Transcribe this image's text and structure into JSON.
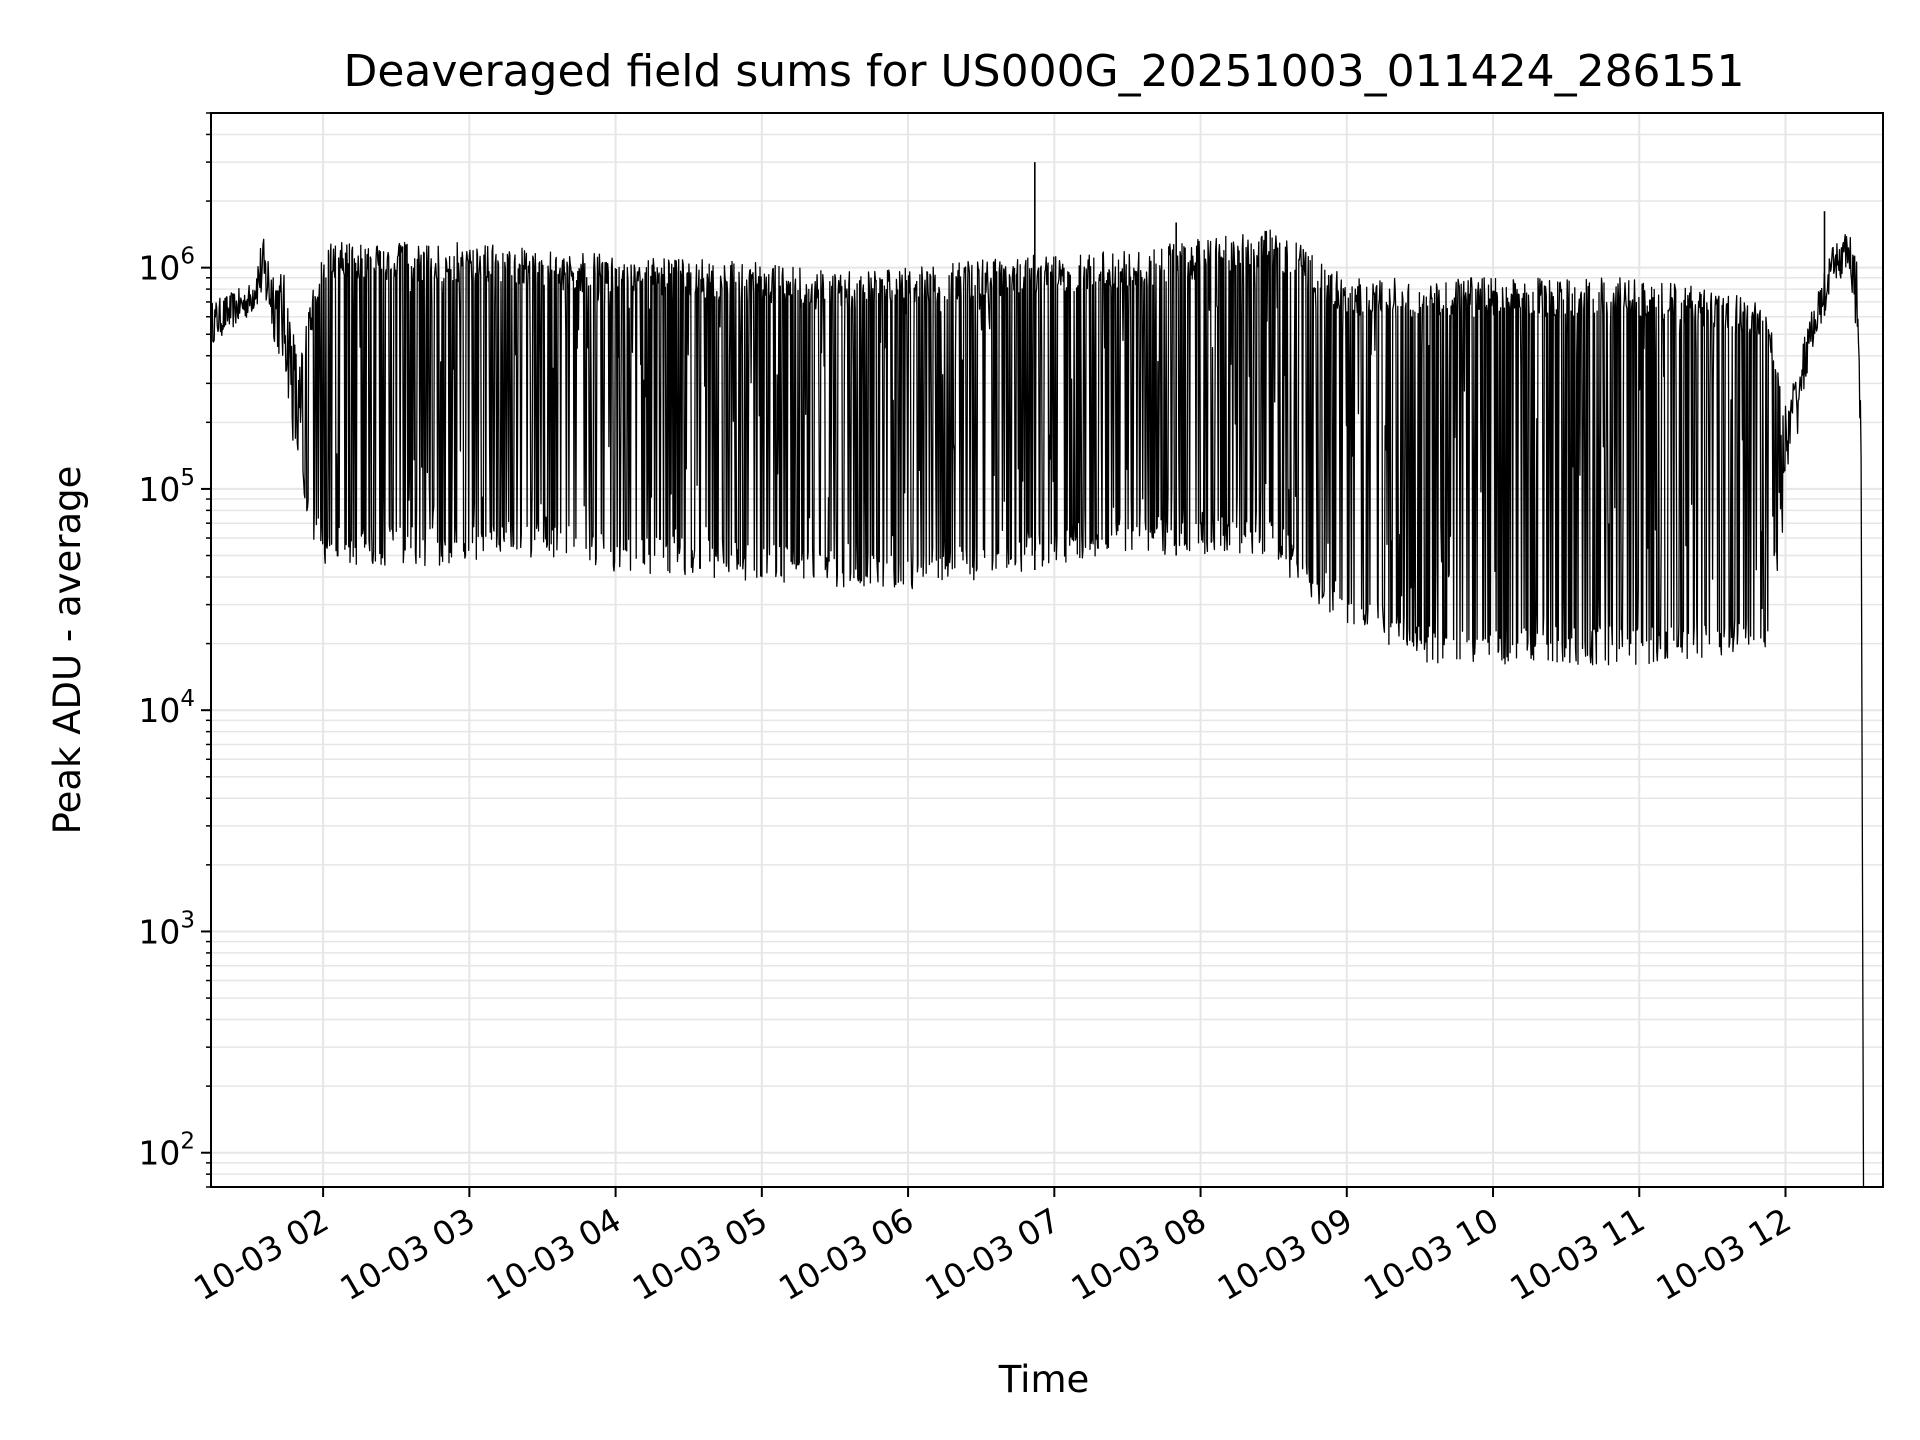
{
  "chart_data": {
    "type": "line",
    "title": "Deaveraged field sums for US000G_20251003_011424_286151",
    "xlabel": "Time",
    "ylabel": "Peak ADU - average",
    "y_scale": "log",
    "grid": true,
    "line_color": "#000000",
    "grid_color": "#e6e6e6",
    "xlim": [
      "2025-10-03 01:14",
      "2025-10-03 12:40"
    ],
    "ylim": [
      70,
      5000000
    ],
    "x_ticks": [
      {
        "t": "2025-10-03 02:00",
        "label": "10-03 02"
      },
      {
        "t": "2025-10-03 03:00",
        "label": "10-03 03"
      },
      {
        "t": "2025-10-03 04:00",
        "label": "10-03 04"
      },
      {
        "t": "2025-10-03 05:00",
        "label": "10-03 05"
      },
      {
        "t": "2025-10-03 06:00",
        "label": "10-03 06"
      },
      {
        "t": "2025-10-03 07:00",
        "label": "10-03 07"
      },
      {
        "t": "2025-10-03 08:00",
        "label": "10-03 08"
      },
      {
        "t": "2025-10-03 09:00",
        "label": "10-03 09"
      },
      {
        "t": "2025-10-03 10:00",
        "label": "10-03 10"
      },
      {
        "t": "2025-10-03 11:00",
        "label": "10-03 11"
      },
      {
        "t": "2025-10-03 12:00",
        "label": "10-03 12"
      }
    ],
    "y_ticks": [
      {
        "value": 100,
        "base": "10",
        "exp": "2"
      },
      {
        "value": 1000,
        "base": "10",
        "exp": "3"
      },
      {
        "value": 10000,
        "base": "10",
        "exp": "4"
      },
      {
        "value": 100000,
        "base": "10",
        "exp": "5"
      },
      {
        "value": 1000000,
        "base": "10",
        "exp": "6"
      }
    ],
    "series": [
      {
        "envelope": [
          {
            "t": "2025-10-03 01:14",
            "upper": 700000,
            "lower": 450000
          },
          {
            "t": "2025-10-03 01:30",
            "upper": 850000,
            "lower": 600000
          },
          {
            "t": "2025-10-03 01:35",
            "upper": 1400000,
            "lower": 700000
          },
          {
            "t": "2025-10-03 01:45",
            "upper": 900000,
            "lower": 300000
          },
          {
            "t": "2025-10-03 01:50",
            "upper": 400000,
            "lower": 90000
          },
          {
            "t": "2025-10-03 02:00",
            "upper": 1300000,
            "lower": 45000
          },
          {
            "t": "2025-10-03 02:30",
            "upper": 1300000,
            "lower": 45000
          },
          {
            "t": "2025-10-03 03:00",
            "upper": 1300000,
            "lower": 45000
          },
          {
            "t": "2025-10-03 03:30",
            "upper": 1200000,
            "lower": 50000
          },
          {
            "t": "2025-10-03 04:00",
            "upper": 1150000,
            "lower": 42000
          },
          {
            "t": "2025-10-03 04:30",
            "upper": 1100000,
            "lower": 40000
          },
          {
            "t": "2025-10-03 05:00",
            "upper": 1050000,
            "lower": 38000
          },
          {
            "t": "2025-10-03 05:30",
            "upper": 950000,
            "lower": 35000
          },
          {
            "t": "2025-10-03 06:00",
            "upper": 1000000,
            "lower": 35000
          },
          {
            "t": "2025-10-03 06:30",
            "upper": 1100000,
            "lower": 38000
          },
          {
            "t": "2025-10-03 07:00",
            "upper": 1150000,
            "lower": 45000
          },
          {
            "t": "2025-10-03 07:30",
            "upper": 1200000,
            "lower": 50000
          },
          {
            "t": "2025-10-03 08:00",
            "upper": 1350000,
            "lower": 50000
          },
          {
            "t": "2025-10-03 08:30",
            "upper": 1500000,
            "lower": 50000
          },
          {
            "t": "2025-10-03 08:45",
            "upper": 1200000,
            "lower": 30000
          },
          {
            "t": "2025-10-03 09:00",
            "upper": 900000,
            "lower": 25000
          },
          {
            "t": "2025-10-03 09:30",
            "upper": 900000,
            "lower": 16000
          },
          {
            "t": "2025-10-03 10:00",
            "upper": 900000,
            "lower": 16000
          },
          {
            "t": "2025-10-03 10:30",
            "upper": 900000,
            "lower": 16000
          },
          {
            "t": "2025-10-03 11:00",
            "upper": 900000,
            "lower": 16000
          },
          {
            "t": "2025-10-03 11:30",
            "upper": 800000,
            "lower": 17000
          },
          {
            "t": "2025-10-03 11:52",
            "upper": 700000,
            "lower": 18000
          },
          {
            "t": "2025-10-03 12:00",
            "upper": 250000,
            "lower": 80000
          },
          {
            "t": "2025-10-03 12:10",
            "upper": 600000,
            "lower": 400000
          },
          {
            "t": "2025-10-03 12:20",
            "upper": 1300000,
            "lower": 800000
          },
          {
            "t": "2025-10-03 12:26",
            "upper": 1500000,
            "lower": 1000000
          },
          {
            "t": "2025-10-03 12:30",
            "upper": 1000000,
            "lower": 300000
          },
          {
            "t": "2025-10-03 12:31",
            "upper": 200000,
            "lower": 100000
          }
        ],
        "drop_to_min": {
          "t": "2025-10-03 12:32"
        },
        "spikes": [
          {
            "t": "2025-10-03 06:52",
            "value": 3000000
          },
          {
            "t": "2025-10-03 07:50",
            "value": 1600000
          },
          {
            "t": "2025-10-03 12:16",
            "value": 1800000
          }
        ]
      }
    ]
  }
}
